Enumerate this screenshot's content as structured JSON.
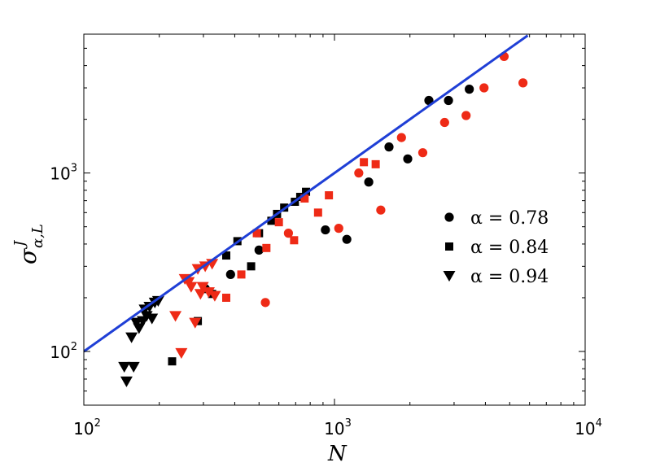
{
  "chart_data": {
    "type": "scatter",
    "title": "",
    "xlabel": "N",
    "ylabel": "σ",
    "ylabel_sup": "J",
    "ylabel_sub": "α,L",
    "xscale": "log",
    "yscale": "log",
    "xlim": [
      100,
      10000
    ],
    "ylim": [
      50,
      6000
    ],
    "grid": false,
    "legend_position": "right",
    "x_ticks": [
      {
        "value": 100,
        "base": "10",
        "exp": "2"
      },
      {
        "value": 1000,
        "base": "10",
        "exp": "3"
      },
      {
        "value": 10000,
        "base": "10",
        "exp": "4"
      }
    ],
    "y_ticks": [
      {
        "value": 100,
        "base": "10",
        "exp": "2"
      },
      {
        "value": 1000,
        "base": "10",
        "exp": "3"
      }
    ],
    "fit_line": {
      "color": "#1f3fd6",
      "points": [
        [
          100,
          100
        ],
        [
          5900,
          5900
        ]
      ]
    },
    "series_colors": {
      "black": "#000000",
      "red": "#ee2a16"
    },
    "legend": [
      {
        "label": "α = 0.78",
        "marker": "circle"
      },
      {
        "label": "α = 0.84",
        "marker": "square"
      },
      {
        "label": "α = 0.94",
        "marker": "triangle-down"
      }
    ],
    "series": [
      {
        "marker": "circle",
        "color": "black",
        "points": [
          [
            305,
            225
          ],
          [
            385,
            270
          ],
          [
            500,
            370
          ],
          [
            920,
            480
          ],
          [
            1120,
            425
          ],
          [
            1370,
            890
          ],
          [
            1650,
            1400
          ],
          [
            1960,
            1200
          ],
          [
            2380,
            2550
          ],
          [
            2850,
            2550
          ],
          [
            3450,
            2950
          ]
        ]
      },
      {
        "marker": "circle",
        "color": "red",
        "points": [
          [
            530,
            188
          ],
          [
            655,
            460
          ],
          [
            1040,
            490
          ],
          [
            1250,
            1000
          ],
          [
            1530,
            620
          ],
          [
            1850,
            1580
          ],
          [
            2250,
            1300
          ],
          [
            2750,
            1920
          ],
          [
            3350,
            2100
          ],
          [
            3950,
            3000
          ],
          [
            4750,
            4500
          ],
          [
            5650,
            3200
          ]
        ]
      },
      {
        "marker": "square",
        "color": "black",
        "points": [
          [
            225,
            88
          ],
          [
            285,
            148
          ],
          [
            325,
            210
          ],
          [
            370,
            345
          ],
          [
            410,
            415
          ],
          [
            465,
            300
          ],
          [
            500,
            460
          ],
          [
            560,
            540
          ],
          [
            590,
            590
          ],
          [
            630,
            640
          ],
          [
            695,
            690
          ],
          [
            730,
            735
          ],
          [
            770,
            785
          ]
        ]
      },
      {
        "marker": "square",
        "color": "red",
        "points": [
          [
            370,
            200
          ],
          [
            425,
            270
          ],
          [
            490,
            460
          ],
          [
            535,
            380
          ],
          [
            600,
            530
          ],
          [
            690,
            420
          ],
          [
            760,
            720
          ],
          [
            860,
            600
          ],
          [
            950,
            750
          ],
          [
            1310,
            1150
          ],
          [
            1460,
            1120
          ]
        ]
      },
      {
        "marker": "triangle-down",
        "color": "black",
        "points": [
          [
            145,
            82
          ],
          [
            158,
            82
          ],
          [
            148,
            68
          ],
          [
            155,
            120
          ],
          [
            162,
            145
          ],
          [
            166,
            135
          ],
          [
            172,
            148
          ],
          [
            175,
            172
          ],
          [
            178,
            158
          ],
          [
            183,
            178
          ],
          [
            187,
            153
          ],
          [
            192,
            188
          ],
          [
            198,
            192
          ]
        ]
      },
      {
        "marker": "triangle-down",
        "color": "red",
        "points": [
          [
            232,
            158
          ],
          [
            245,
            98
          ],
          [
            253,
            255
          ],
          [
            262,
            245
          ],
          [
            268,
            230
          ],
          [
            278,
            145
          ],
          [
            285,
            290
          ],
          [
            292,
            210
          ],
          [
            298,
            230
          ],
          [
            305,
            300
          ],
          [
            315,
            215
          ],
          [
            325,
            310
          ],
          [
            333,
            205
          ]
        ]
      }
    ]
  }
}
